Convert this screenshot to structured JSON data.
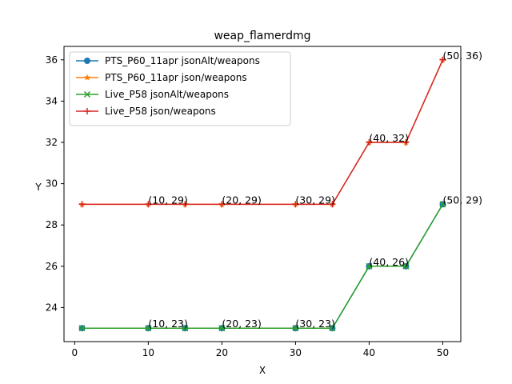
{
  "chart_data": {
    "type": "line",
    "title": "weap_flamerdmg",
    "xlabel": "X",
    "ylabel": "Y",
    "xlim": [
      -1.45,
      52.45
    ],
    "ylim": [
      22.35,
      36.65
    ],
    "xticks": [
      0,
      10,
      20,
      30,
      40,
      50
    ],
    "yticks": [
      24,
      26,
      28,
      30,
      32,
      34,
      36
    ],
    "grid": false,
    "legend_position": "upper-left",
    "series": [
      {
        "name": "PTS_P60_11apr jsonAlt/weapons",
        "color": "#1f77b4",
        "marker": "circle",
        "x": [
          1,
          10,
          15,
          20,
          30,
          35,
          40,
          45,
          50
        ],
        "y": [
          23,
          23,
          23,
          23,
          23,
          23,
          26,
          26,
          29
        ]
      },
      {
        "name": "PTS_P60_11apr json/weapons",
        "color": "#ff7f0e",
        "marker": "star",
        "x": [
          1,
          10,
          15,
          20,
          30,
          35,
          40,
          45,
          50
        ],
        "y": [
          29,
          29,
          29,
          29,
          29,
          29,
          32,
          32,
          36
        ]
      },
      {
        "name": "Live_P58 jsonAlt/weapons",
        "color": "#2ca02c",
        "marker": "x",
        "x": [
          1,
          10,
          15,
          20,
          30,
          35,
          40,
          45,
          50
        ],
        "y": [
          23,
          23,
          23,
          23,
          23,
          23,
          26,
          26,
          29
        ]
      },
      {
        "name": "Live_P58 json/weapons",
        "color": "#d62728",
        "marker": "plus",
        "x": [
          1,
          10,
          15,
          20,
          30,
          35,
          40,
          45,
          50
        ],
        "y": [
          29,
          29,
          29,
          29,
          29,
          29,
          32,
          32,
          36
        ]
      }
    ],
    "annotations": [
      {
        "x": 10,
        "y": 29,
        "text": "(10, 29)"
      },
      {
        "x": 20,
        "y": 29,
        "text": "(20, 29)"
      },
      {
        "x": 30,
        "y": 29,
        "text": "(30, 29)"
      },
      {
        "x": 40,
        "y": 32,
        "text": "(40, 32)"
      },
      {
        "x": 50,
        "y": 36,
        "text": "(50, 36)"
      },
      {
        "x": 10,
        "y": 23,
        "text": "(10, 23)"
      },
      {
        "x": 20,
        "y": 23,
        "text": "(20, 23)"
      },
      {
        "x": 30,
        "y": 23,
        "text": "(30, 23)"
      },
      {
        "x": 40,
        "y": 26,
        "text": "(40, 26)"
      },
      {
        "x": 50,
        "y": 29,
        "text": "(50, 29)"
      }
    ]
  }
}
